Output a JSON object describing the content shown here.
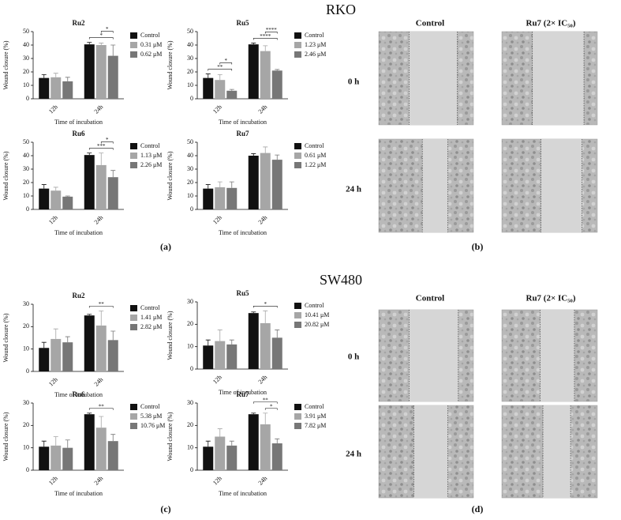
{
  "figure": {
    "headings": [
      "RKO",
      "SW480"
    ],
    "panel_labels": [
      "(a)",
      "(b)",
      "(c)",
      "(d)"
    ],
    "micrographs": [
      {
        "columns": [
          "Control",
          "Ru7 (2× IC₅₀)"
        ],
        "rows": [
          "0 h",
          "24 h"
        ]
      },
      {
        "columns": [
          "Control",
          "Ru7 (2× IC₅₀)"
        ],
        "rows": [
          "0 h",
          "24 h"
        ]
      }
    ]
  },
  "chart_data": [
    {
      "type": "bar",
      "title": "Ru2",
      "ylabel": "Wound closure (%)",
      "xlabel": "Time of incubation",
      "categories": [
        "12h",
        "24h"
      ],
      "ylim": [
        0,
        50
      ],
      "yticks": [
        0,
        10,
        20,
        30,
        40,
        50
      ],
      "series": [
        {
          "name": "Control",
          "color": "#111111",
          "values": [
            15.5,
            40.5
          ],
          "errors": [
            2.5,
            1.5
          ]
        },
        {
          "name": "0.31 μM",
          "color": "#a6a6a6",
          "values": [
            16,
            40
          ],
          "errors": [
            3,
            1.5
          ]
        },
        {
          "name": "0.62 μM",
          "color": "#777777",
          "values": [
            13,
            32
          ],
          "errors": [
            3,
            8
          ]
        }
      ],
      "annotations": [
        {
          "text": "*",
          "category": 1,
          "series": [
            0,
            2
          ]
        },
        {
          "text": "*",
          "category": 1,
          "series": [
            1,
            2
          ]
        }
      ]
    },
    {
      "type": "bar",
      "title": "Ru5",
      "ylabel": "Wound closure (%)",
      "xlabel": "Time of incubation",
      "categories": [
        "12h",
        "24h"
      ],
      "ylim": [
        0,
        50
      ],
      "yticks": [
        0,
        10,
        20,
        30,
        40,
        50
      ],
      "series": [
        {
          "name": "Control",
          "color": "#111111",
          "values": [
            15.5,
            40.5
          ],
          "errors": [
            3,
            1
          ]
        },
        {
          "name": "1.23 μM",
          "color": "#a6a6a6",
          "values": [
            14,
            35.5
          ],
          "errors": [
            4,
            4
          ]
        },
        {
          "name": "2.46 μM",
          "color": "#777777",
          "values": [
            6,
            21
          ],
          "errors": [
            1,
            0.8
          ]
        }
      ],
      "annotations": [
        {
          "text": "**",
          "category": 0,
          "series": [
            0,
            2
          ]
        },
        {
          "text": "*",
          "category": 0,
          "series": [
            1,
            2
          ]
        },
        {
          "text": "****",
          "category": 1,
          "series": [
            0,
            2
          ]
        },
        {
          "text": "****",
          "category": 1,
          "series": [
            1,
            2
          ]
        }
      ]
    },
    {
      "type": "bar",
      "title": "Ru6",
      "ylabel": "Wound closure (%)",
      "xlabel": "Time of incubation",
      "categories": [
        "12h",
        "24h"
      ],
      "ylim": [
        0,
        50
      ],
      "yticks": [
        0,
        10,
        20,
        30,
        40,
        50
      ],
      "series": [
        {
          "name": "Control",
          "color": "#111111",
          "values": [
            15.5,
            40.5
          ],
          "errors": [
            3,
            1.5
          ]
        },
        {
          "name": "1.13 μM",
          "color": "#a6a6a6",
          "values": [
            14,
            33
          ],
          "errors": [
            2.5,
            9
          ]
        },
        {
          "name": "2.26 μM",
          "color": "#777777",
          "values": [
            9.5,
            24
          ],
          "errors": [
            0.5,
            5
          ]
        }
      ],
      "annotations": [
        {
          "text": "***",
          "category": 1,
          "series": [
            0,
            2
          ]
        },
        {
          "text": "*",
          "category": 1,
          "series": [
            1,
            2
          ]
        }
      ]
    },
    {
      "type": "bar",
      "title": "Ru7",
      "ylabel": "Wound closure (%)",
      "xlabel": "Time of incubation",
      "categories": [
        "12h",
        "24h"
      ],
      "ylim": [
        0,
        50
      ],
      "yticks": [
        0,
        10,
        20,
        30,
        40,
        50
      ],
      "series": [
        {
          "name": "Control",
          "color": "#111111",
          "values": [
            15.5,
            40
          ],
          "errors": [
            3,
            1.5
          ]
        },
        {
          "name": "0.61 μM",
          "color": "#a6a6a6",
          "values": [
            16.5,
            42
          ],
          "errors": [
            4,
            4.5
          ]
        },
        {
          "name": "1.22 μM",
          "color": "#777777",
          "values": [
            16,
            37
          ],
          "errors": [
            4.5,
            3.5
          ]
        }
      ],
      "annotations": []
    },
    {
      "type": "bar",
      "title": "Ru2",
      "ylabel": "Wound closure (%)",
      "xlabel": "Time of incubation",
      "categories": [
        "12h",
        "24h"
      ],
      "ylim": [
        0,
        30
      ],
      "yticks": [
        0,
        10,
        20,
        30
      ],
      "series": [
        {
          "name": "Control",
          "color": "#111111",
          "values": [
            10.5,
            25
          ],
          "errors": [
            2.5,
            0.5
          ]
        },
        {
          "name": "1.41 μM",
          "color": "#a6a6a6",
          "values": [
            14.5,
            20.5
          ],
          "errors": [
            4.5,
            6.5
          ]
        },
        {
          "name": "2.82 μM",
          "color": "#777777",
          "values": [
            13,
            14
          ],
          "errors": [
            2.5,
            4
          ]
        }
      ],
      "annotations": [
        {
          "text": "**",
          "category": 1,
          "series": [
            0,
            2
          ]
        }
      ]
    },
    {
      "type": "bar",
      "title": "Ru5",
      "ylabel": "Wound closure (%)",
      "xlabel": "Time of incubation",
      "categories": [
        "12h",
        "24h"
      ],
      "ylim": [
        0,
        30
      ],
      "yticks": [
        0,
        10,
        20,
        30
      ],
      "series": [
        {
          "name": "Control",
          "color": "#111111",
          "values": [
            10.5,
            25
          ],
          "errors": [
            2.5,
            0.5
          ]
        },
        {
          "name": "10.41 μM",
          "color": "#a6a6a6",
          "values": [
            12.5,
            20.5
          ],
          "errors": [
            5,
            5.5
          ]
        },
        {
          "name": "20.82 μM",
          "color": "#777777",
          "values": [
            11,
            14
          ],
          "errors": [
            2,
            3.5
          ]
        }
      ],
      "annotations": [
        {
          "text": "*",
          "category": 1,
          "series": [
            0,
            2
          ]
        }
      ]
    },
    {
      "type": "bar",
      "title": "Ru6",
      "ylabel": "Wound closure (%)",
      "xlabel": "Time of incubation",
      "categories": [
        "12h",
        "24h"
      ],
      "ylim": [
        0,
        30
      ],
      "yticks": [
        0,
        10,
        20,
        30
      ],
      "series": [
        {
          "name": "Control",
          "color": "#111111",
          "values": [
            10.5,
            25
          ],
          "errors": [
            2.5,
            0.5
          ]
        },
        {
          "name": "5.38 μM",
          "color": "#a6a6a6",
          "values": [
            11,
            19
          ],
          "errors": [
            4,
            5
          ]
        },
        {
          "name": "10.76 μM",
          "color": "#777777",
          "values": [
            10,
            13
          ],
          "errors": [
            3.5,
            3
          ]
        }
      ],
      "annotations": [
        {
          "text": "**",
          "category": 1,
          "series": [
            0,
            2
          ]
        }
      ]
    },
    {
      "type": "bar",
      "title": "Ru7",
      "ylabel": "Wound closure (%)",
      "xlabel": "Time of incubation",
      "categories": [
        "12h",
        "24h"
      ],
      "ylim": [
        0,
        30
      ],
      "yticks": [
        0,
        10,
        20,
        30
      ],
      "series": [
        {
          "name": "Control",
          "color": "#111111",
          "values": [
            10.5,
            25
          ],
          "errors": [
            2.5,
            0.5
          ]
        },
        {
          "name": "3.91 μM",
          "color": "#a6a6a6",
          "values": [
            15,
            20.5
          ],
          "errors": [
            3.5,
            5
          ]
        },
        {
          "name": "7.82 μM",
          "color": "#777777",
          "values": [
            11,
            12
          ],
          "errors": [
            2,
            2
          ]
        }
      ],
      "annotations": [
        {
          "text": "*",
          "category": 1,
          "series": [
            1,
            2
          ]
        },
        {
          "text": "**",
          "category": 1,
          "series": [
            0,
            2
          ]
        }
      ]
    }
  ]
}
